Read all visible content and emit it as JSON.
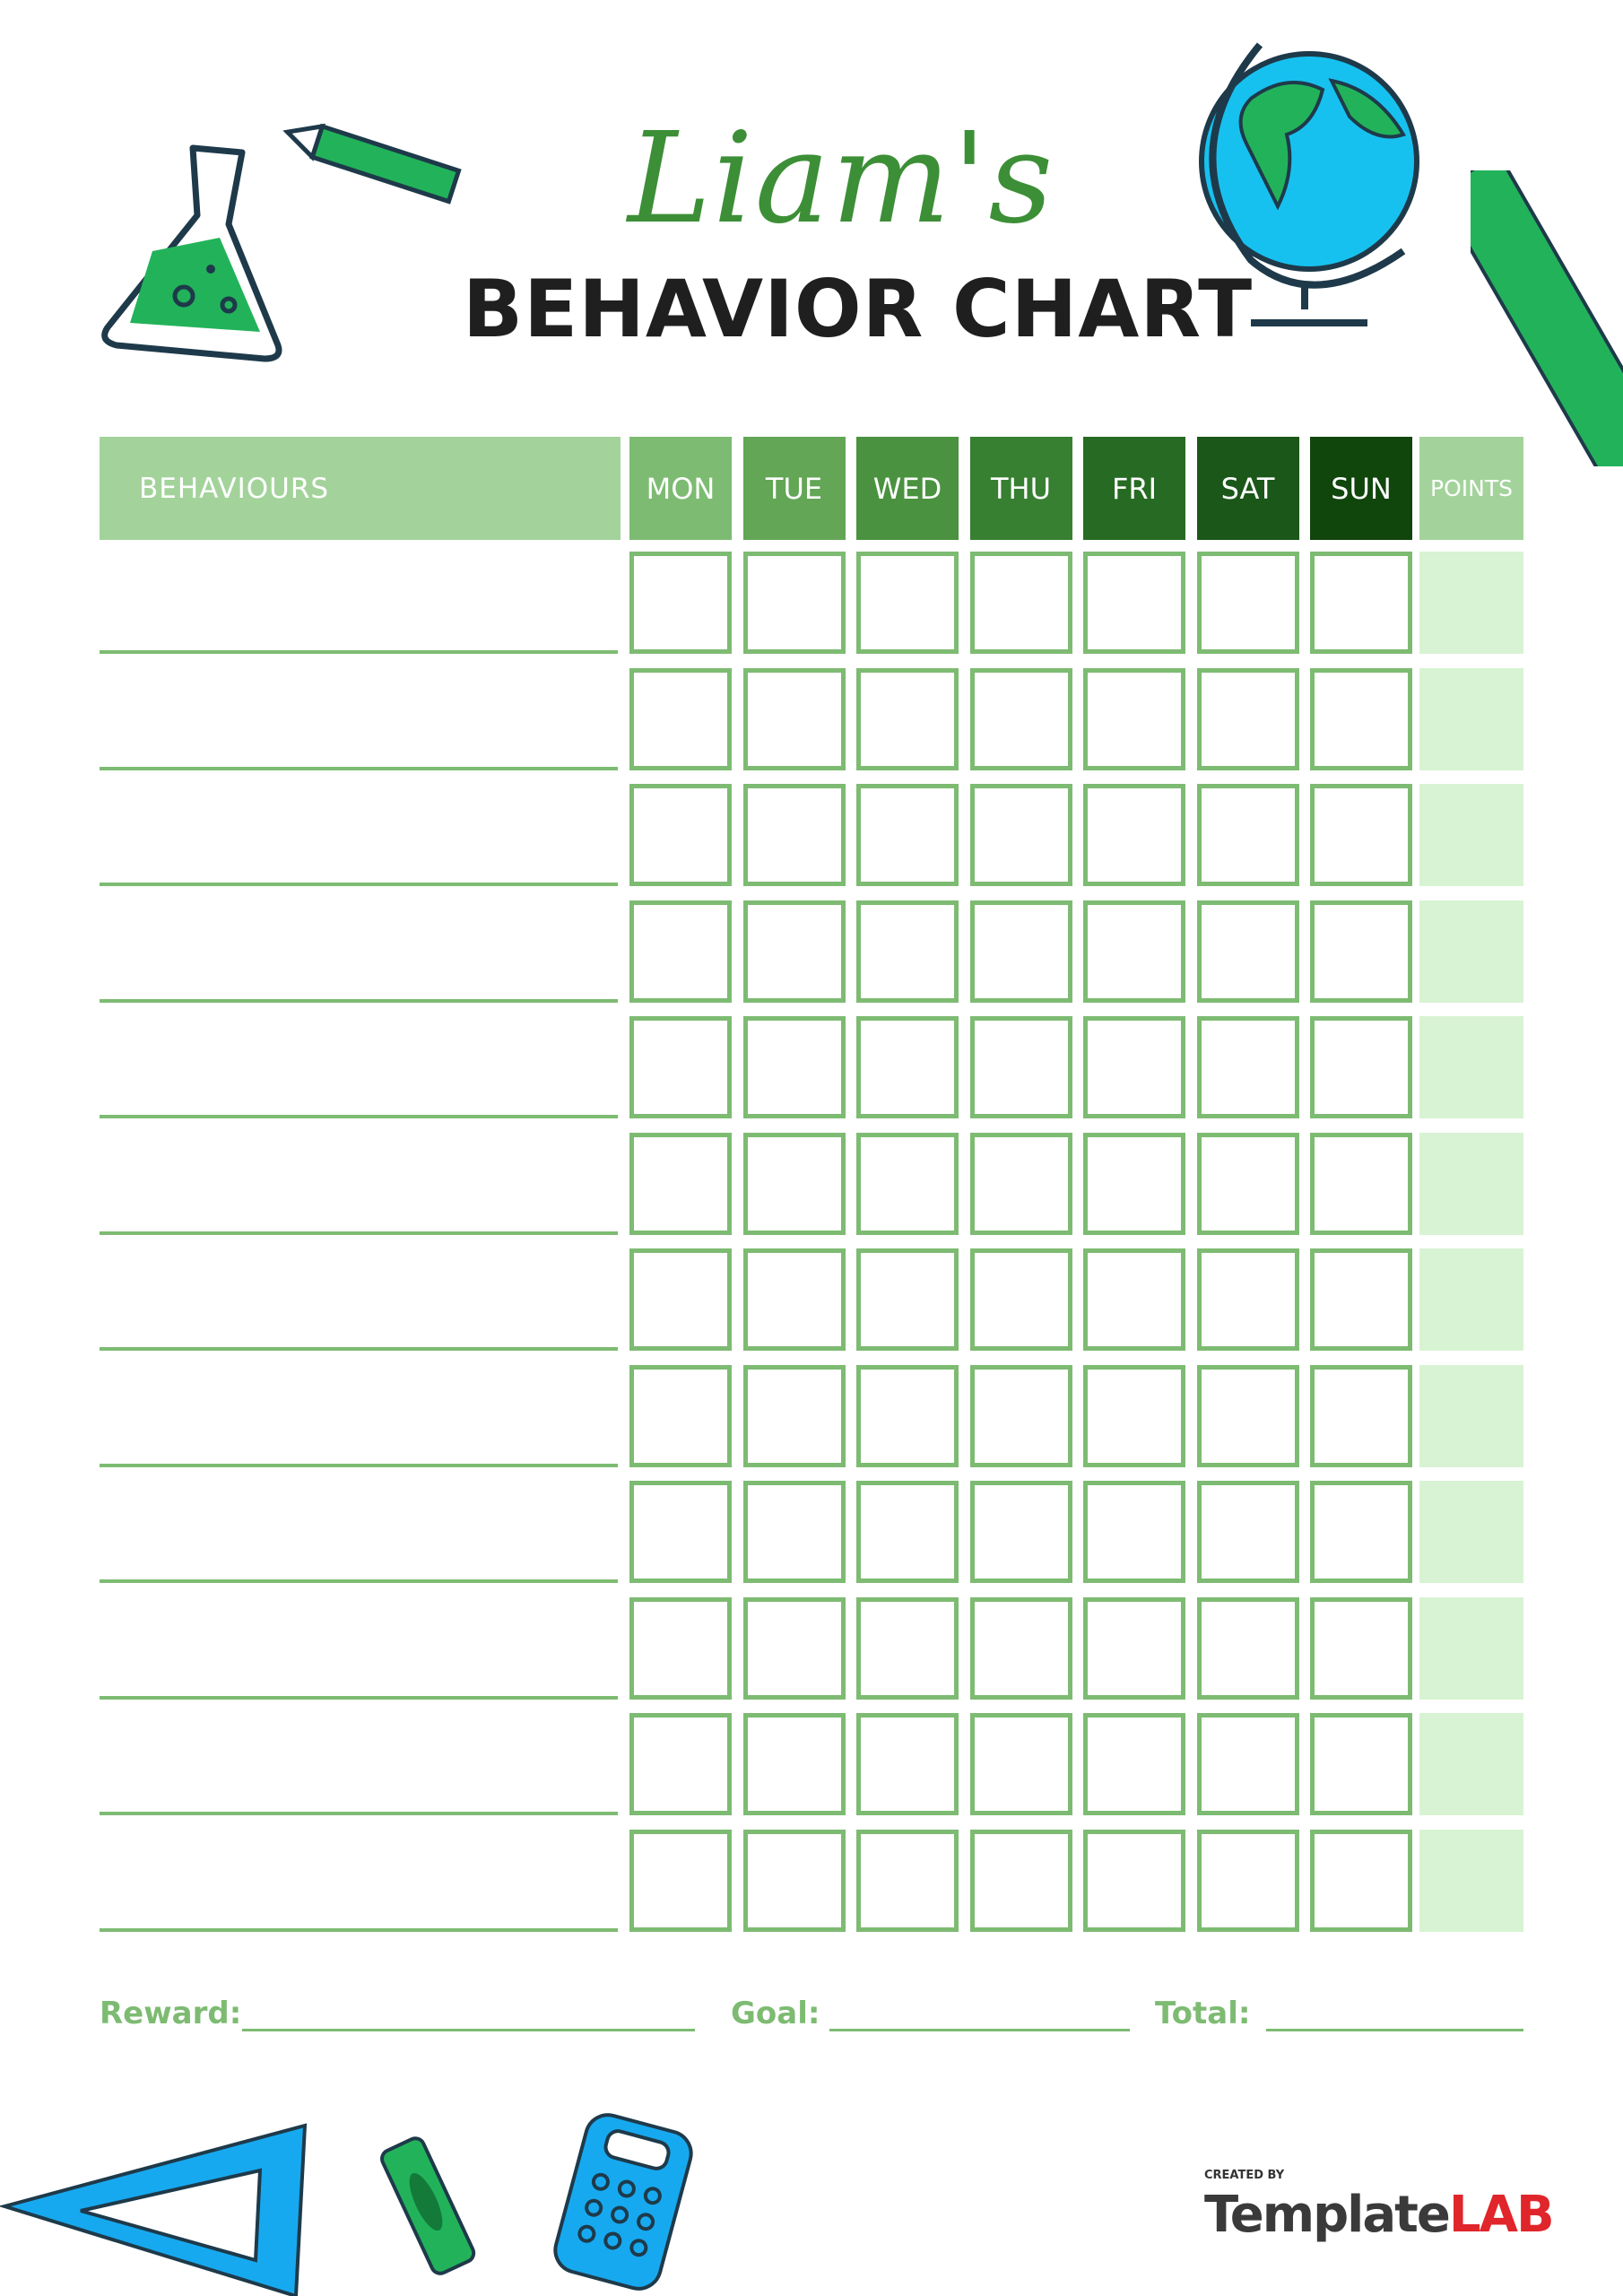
{
  "header": {
    "name": "Liam's",
    "title": "BEHAVIOR CHART"
  },
  "table": {
    "behaviours_label": "BEHAVIOURS",
    "days": [
      {
        "label": "MON",
        "color": "#7dbb72"
      },
      {
        "label": "TUE",
        "color": "#62a656"
      },
      {
        "label": "WED",
        "color": "#4a923f"
      },
      {
        "label": "THU",
        "color": "#377f31"
      },
      {
        "label": "FRI",
        "color": "#276a23"
      },
      {
        "label": "SAT",
        "color": "#1b5718"
      },
      {
        "label": "SUN",
        "color": "#10450c"
      }
    ],
    "points_label": "POINTS",
    "header_light_color": "#a3d39b",
    "row_count": 12
  },
  "footer": {
    "reward_label": "Reward:",
    "goal_label": "Goal:",
    "total_label": "Total:"
  },
  "branding": {
    "created_by": "CREATED BY",
    "template": "Template",
    "lab": "LAB"
  },
  "decorations": [
    "flask-icon",
    "crayon-icon",
    "globe-icon",
    "ruler-icon",
    "triangle-ruler-icon",
    "crayon-icon",
    "calculator-icon"
  ]
}
